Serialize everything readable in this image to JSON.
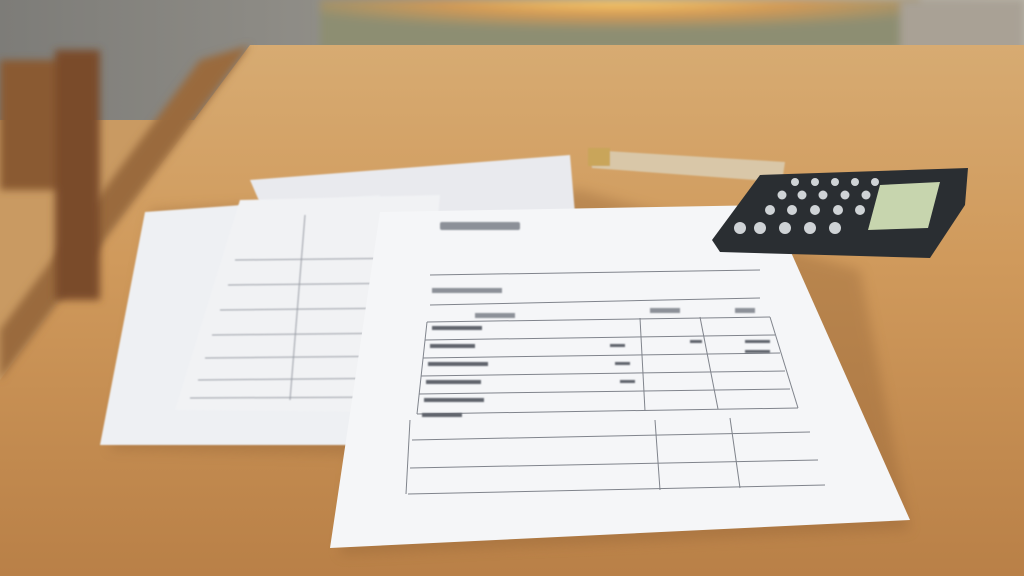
{
  "scene": {
    "description_colors": {
      "table_wood_light": "#d9a86c",
      "table_wood_dark": "#b07a45",
      "window_glow": "#f2b45a",
      "paper": "#f3f4f6",
      "calculator_body": "#2e3236",
      "calculator_display": "#c9d6b0"
    }
  }
}
